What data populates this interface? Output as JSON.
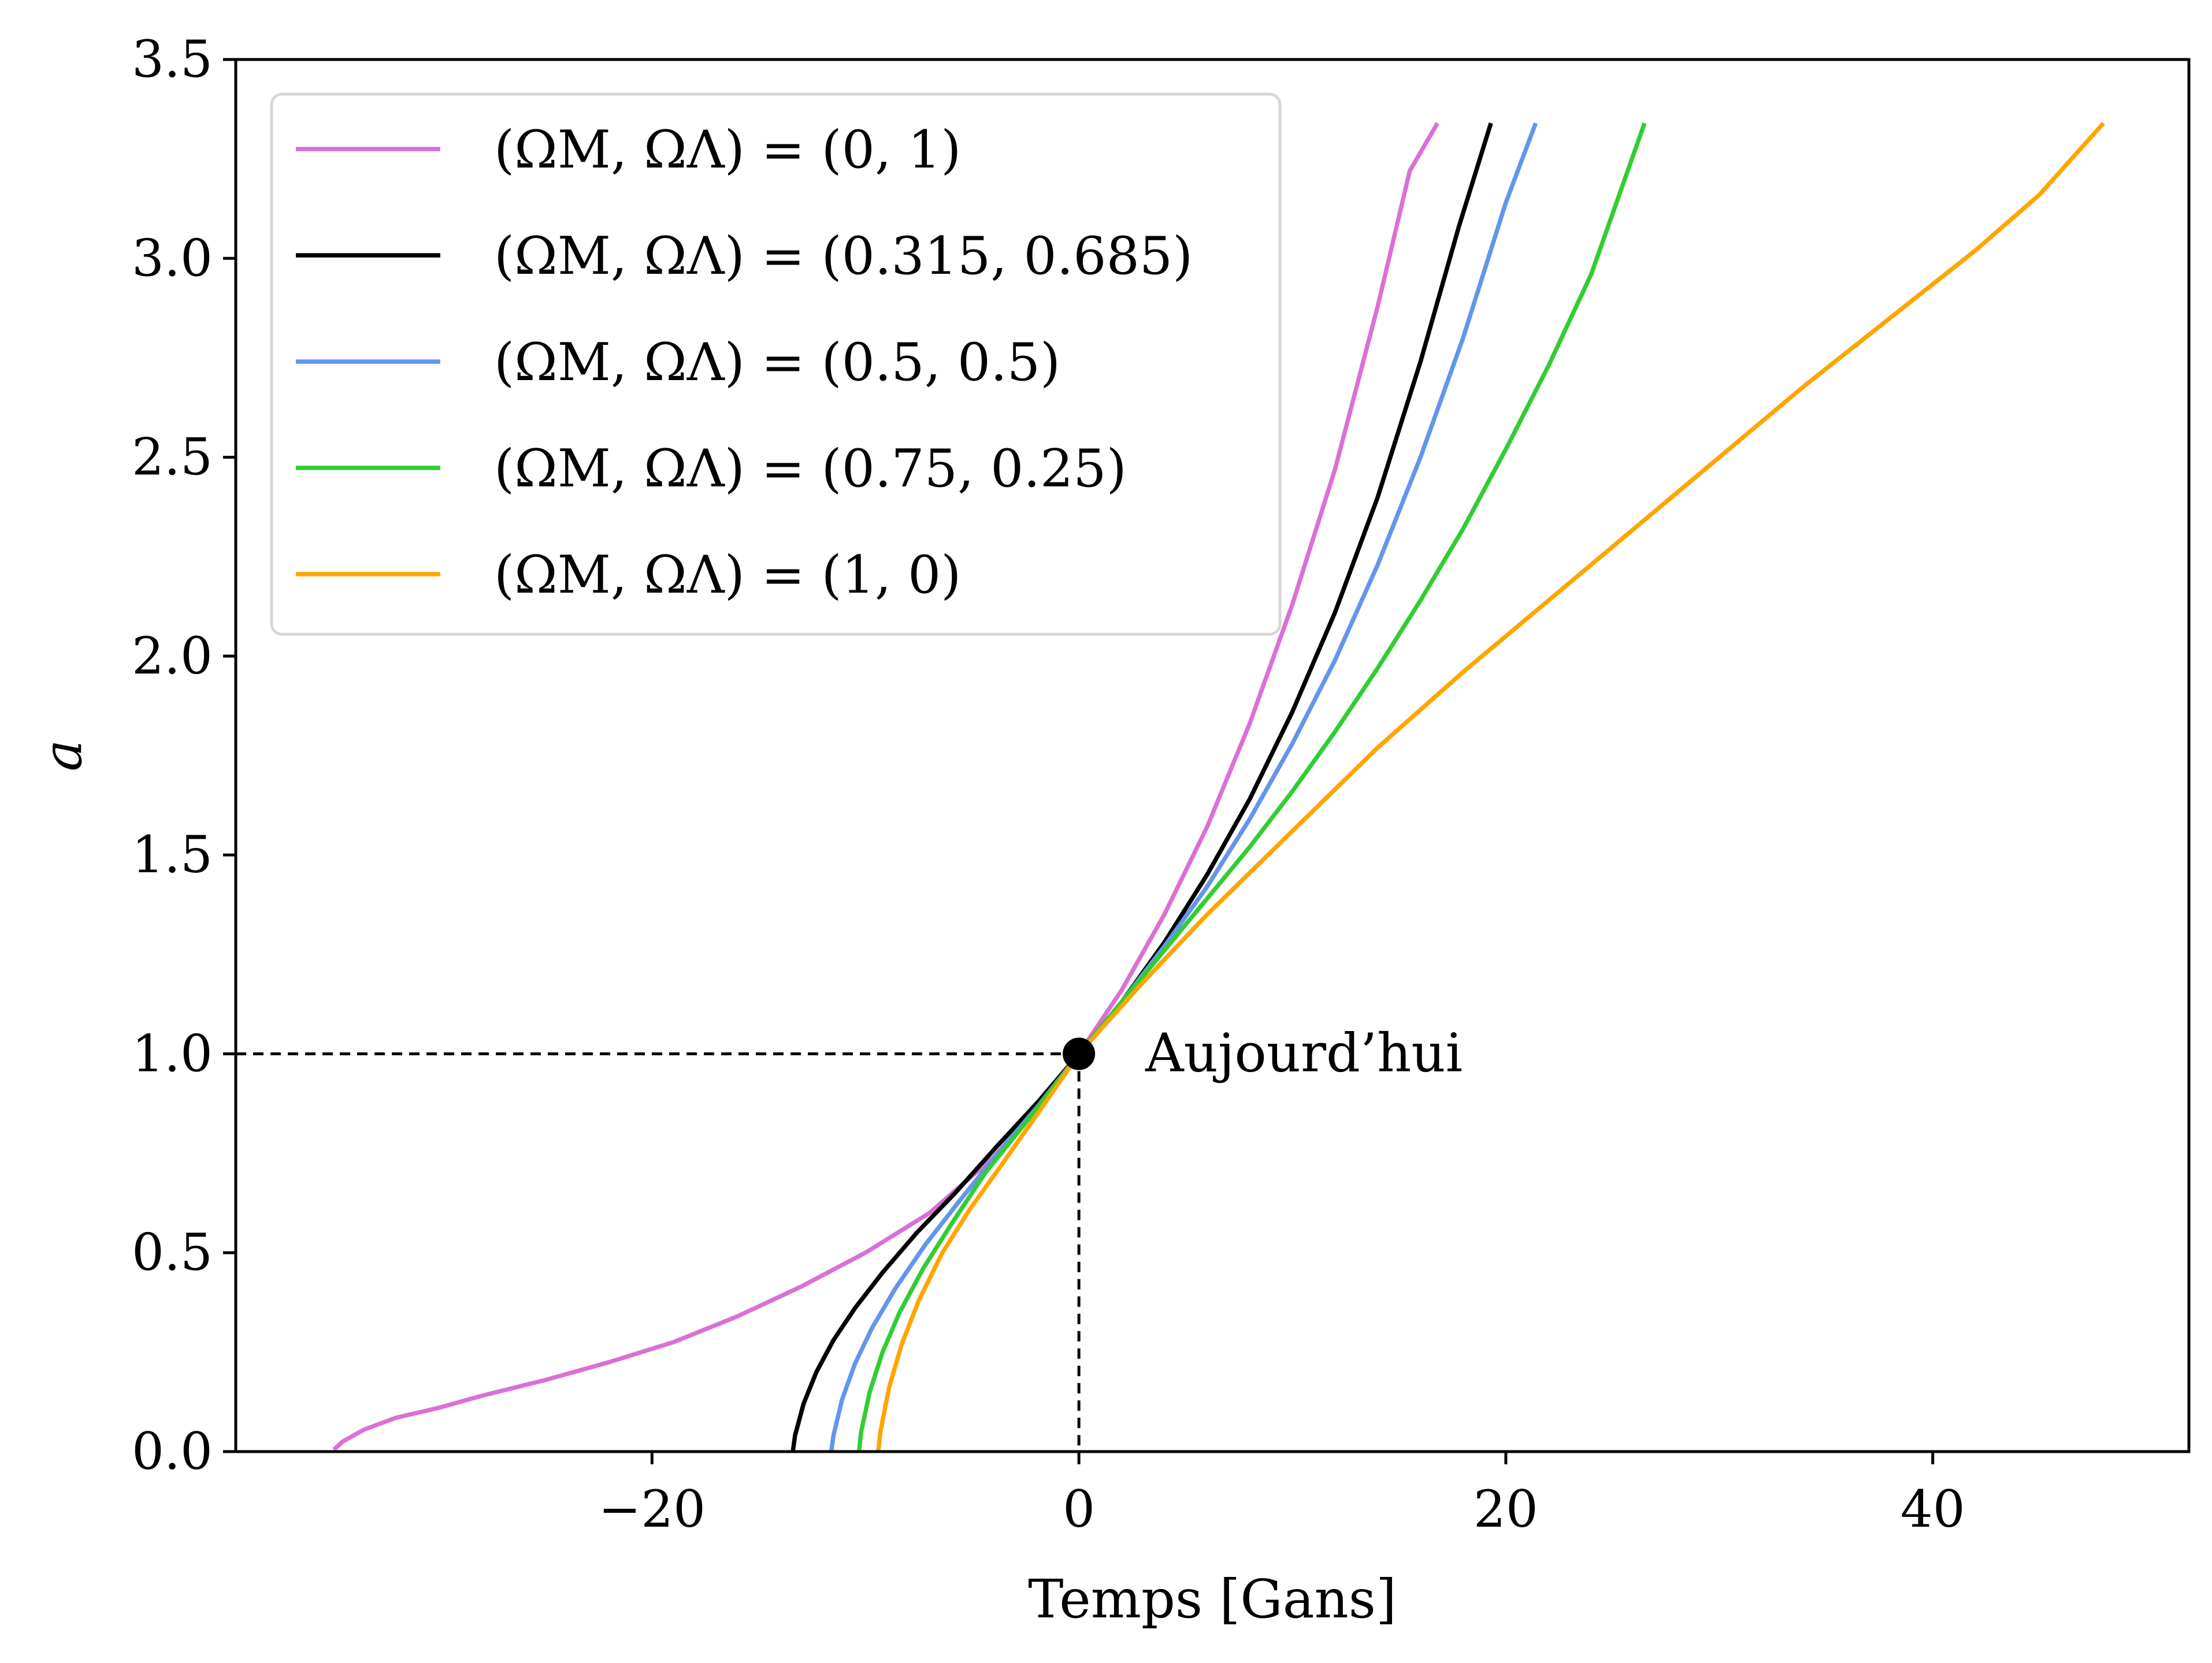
{
  "chart_data": {
    "type": "line",
    "title": "",
    "xlabel": "Temps [Gans]",
    "ylabel": "a",
    "xlim": [
      -39.5,
      52
    ],
    "ylim": [
      0,
      3.5
    ],
    "xticks": [
      -20,
      0,
      20,
      40
    ],
    "xtick_labels": [
      "−20",
      "0",
      "20",
      "40"
    ],
    "yticks": [
      0.0,
      0.5,
      1.0,
      1.5,
      2.0,
      2.5,
      3.0,
      3.5
    ],
    "ytick_labels": [
      "0.0",
      "0.5",
      "1.0",
      "1.5",
      "2.0",
      "2.5",
      "3.0",
      "3.5"
    ],
    "grid": false,
    "legend_position": "top-left",
    "series": [
      {
        "name": "(ΩM, ΩΛ) = (0, 1)",
        "color": "#da70d6",
        "x": [
          -34.9,
          -34.5,
          -33.5,
          -32,
          -30,
          -28,
          -25,
          -22,
          -19,
          -16,
          -13,
          -10,
          -7,
          -4,
          -2,
          0,
          2,
          4,
          6,
          8,
          10,
          12,
          14,
          15.5,
          16.8
        ],
        "y": [
          0.005,
          0.025,
          0.055,
          0.085,
          0.11,
          0.14,
          0.18,
          0.225,
          0.275,
          0.34,
          0.415,
          0.5,
          0.6,
          0.74,
          0.86,
          1.0,
          1.16,
          1.35,
          1.57,
          1.83,
          2.13,
          2.47,
          2.88,
          3.22,
          3.34
        ]
      },
      {
        "name": "(ΩM, ΩΛ) = (0.315, 0.685)",
        "color": "#000000",
        "x": [
          -13.4,
          -13.3,
          -12.9,
          -12.3,
          -11.5,
          -10.5,
          -9.2,
          -7.6,
          -5.8,
          -3.8,
          -1.9,
          0,
          2,
          4,
          6,
          8,
          10,
          12,
          14,
          16,
          17.8,
          19.3
        ],
        "y": [
          0.0,
          0.04,
          0.12,
          0.2,
          0.28,
          0.36,
          0.45,
          0.55,
          0.65,
          0.77,
          0.88,
          1.0,
          1.13,
          1.28,
          1.45,
          1.64,
          1.86,
          2.11,
          2.4,
          2.74,
          3.08,
          3.34
        ]
      },
      {
        "name": "(ΩM, ΩΛ) = (0.5, 0.5)",
        "color": "#6495ed",
        "x": [
          -11.6,
          -11.5,
          -11.1,
          -10.5,
          -9.7,
          -8.6,
          -7.2,
          -5.6,
          -3.8,
          -1.9,
          0,
          2,
          4,
          6,
          8,
          10,
          12,
          14,
          16,
          18,
          20,
          21.4
        ],
        "y": [
          0.0,
          0.04,
          0.13,
          0.22,
          0.31,
          0.41,
          0.52,
          0.63,
          0.75,
          0.87,
          1.0,
          1.13,
          1.27,
          1.42,
          1.59,
          1.78,
          1.99,
          2.23,
          2.5,
          2.8,
          3.14,
          3.34
        ]
      },
      {
        "name": "(ΩM, ΩΛ) = (0.75, 0.25)",
        "color": "#32cd32",
        "x": [
          -10.3,
          -10.2,
          -9.8,
          -9.2,
          -8.4,
          -7.3,
          -6,
          -4.4,
          -2.6,
          -1,
          0,
          2,
          4,
          6,
          8,
          10,
          12,
          14,
          16,
          18,
          20,
          22,
          24,
          26.5
        ],
        "y": [
          0.0,
          0.05,
          0.15,
          0.25,
          0.35,
          0.46,
          0.57,
          0.7,
          0.82,
          0.93,
          1.0,
          1.13,
          1.26,
          1.39,
          1.52,
          1.66,
          1.81,
          1.97,
          2.14,
          2.32,
          2.52,
          2.73,
          2.96,
          3.34
        ]
      },
      {
        "name": "(ΩM, ΩΛ) = (1, 0)",
        "color": "#ffa500",
        "x": [
          -9.4,
          -9.3,
          -8.9,
          -8.3,
          -7.5,
          -6.4,
          -5.1,
          -3.5,
          -1.8,
          0,
          3,
          6,
          10,
          14,
          18,
          22,
          26,
          30,
          34,
          38,
          42,
          45,
          48
        ],
        "y": [
          0.0,
          0.05,
          0.16,
          0.27,
          0.38,
          0.5,
          0.61,
          0.73,
          0.86,
          1.0,
          1.18,
          1.35,
          1.56,
          1.77,
          1.96,
          2.14,
          2.32,
          2.5,
          2.68,
          2.85,
          3.02,
          3.16,
          3.34
        ]
      }
    ],
    "annotations": [
      {
        "text": "Aujourd’hui",
        "x": 0,
        "y": 1.0,
        "marker": "circle",
        "guide_lines": "dashed"
      }
    ]
  }
}
